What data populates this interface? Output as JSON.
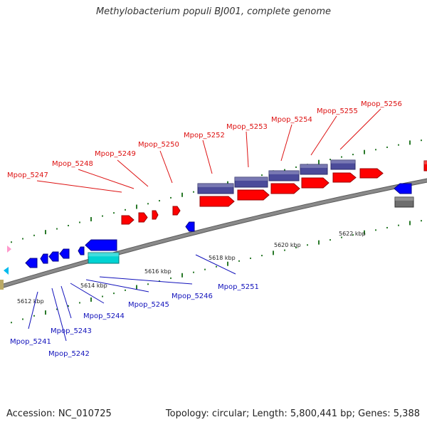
{
  "title": "Methylobacterium populi BJ001, complete genome",
  "footer": {
    "accession": "Accession: NC_010725",
    "summary": "Topology: circular; Length: 5,800,441 bp; Genes: 5,388"
  },
  "colors": {
    "forward_label": "#dd1111",
    "reverse_label": "#1111bb",
    "forward_cds": "#ff0000",
    "reverse_cds": "#0000ff",
    "forward_rna": "#4b4b9a",
    "reverse_rna": "#00d3d3",
    "backbone": "#8a8a8a",
    "tick": "#2a7a2a"
  },
  "scale_labels": [
    "5612 kbp",
    "5614 kbp",
    "5616 kbp",
    "5618 kbp",
    "5620 kbp",
    "5622 kbp"
  ],
  "forward_labels": [
    "Mpop_5247",
    "Mpop_5248",
    "Mpop_5249",
    "Mpop_5250",
    "Mpop_5252",
    "Mpop_5253",
    "Mpop_5254",
    "Mpop_5255",
    "Mpop_5256"
  ],
  "reverse_labels": [
    "Mpop_5241",
    "Mpop_5242",
    "Mpop_5243",
    "Mpop_5244",
    "Mpop_5245",
    "Mpop_5246",
    "Mpop_5251"
  ]
}
